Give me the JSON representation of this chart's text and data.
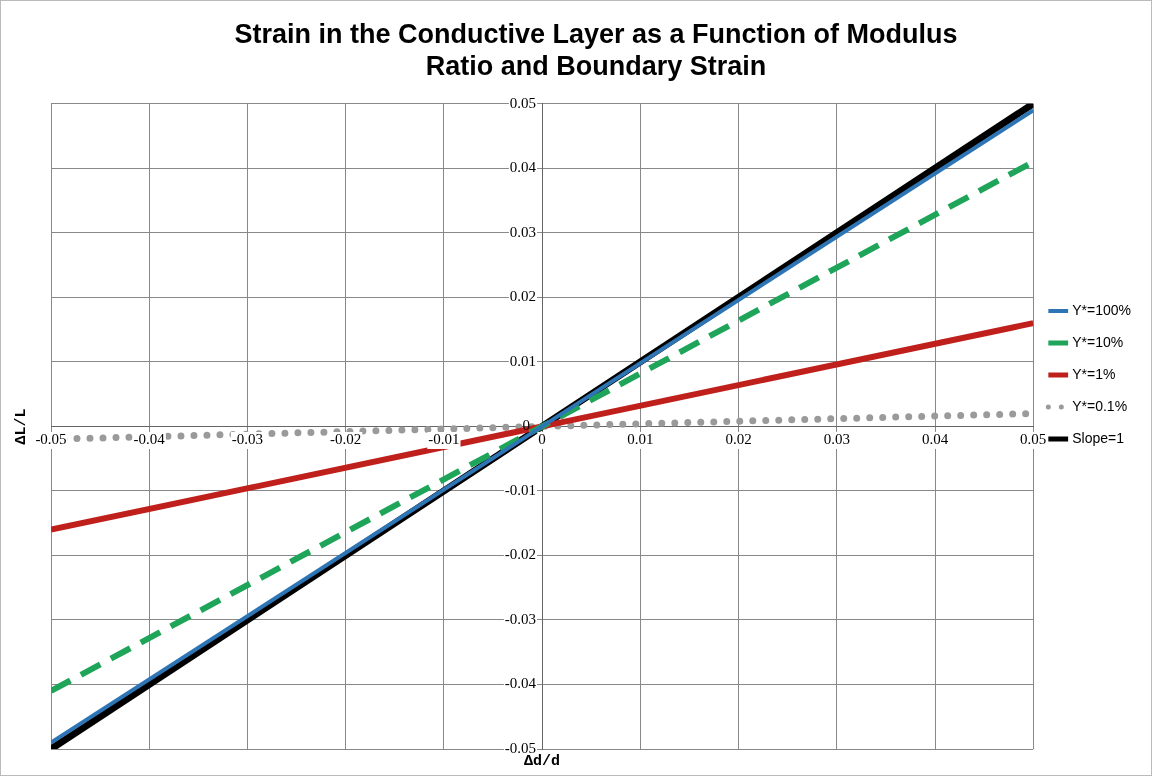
{
  "chart_data": {
    "type": "line",
    "title": "Strain in the Conductive Layer as a Function of Modulus Ratio and Boundary Strain",
    "xlabel": "Δd/d",
    "ylabel": "ΔL/L",
    "x": [
      -0.05,
      0,
      0.05
    ],
    "series": [
      {
        "name": "Y*=100%",
        "color": "#2e75b6",
        "line_style": "solid",
        "values": [
          -0.049,
          0,
          0.049
        ]
      },
      {
        "name": "Y*=10%",
        "color": "#1fa55a",
        "line_style": "dashed",
        "values": [
          -0.041,
          0,
          0.041
        ]
      },
      {
        "name": "Y*=1%",
        "color": "#c0201b",
        "line_style": "solid",
        "values": [
          -0.016,
          0,
          0.016
        ]
      },
      {
        "name": "Y*=0.1%",
        "color": "#9a9a9a",
        "line_style": "dotted",
        "values": [
          -0.002,
          0,
          0.002
        ]
      },
      {
        "name": "Slope=1",
        "color": "#000000",
        "line_style": "solid",
        "values": [
          -0.05,
          0,
          0.05
        ]
      }
    ],
    "xlim": [
      -0.05,
      0.05
    ],
    "xticks": [
      -0.05,
      -0.04,
      -0.03,
      -0.02,
      -0.01,
      0,
      0.01,
      0.02,
      0.03,
      0.04,
      0.05
    ],
    "ylim": [
      -0.05,
      0.05
    ],
    "yticks": [
      -0.05,
      -0.04,
      -0.03,
      -0.02,
      -0.01,
      0,
      0.01,
      0.02,
      0.03,
      0.04,
      0.05
    ],
    "grid": true,
    "legend": "right",
    "marker": "none"
  }
}
